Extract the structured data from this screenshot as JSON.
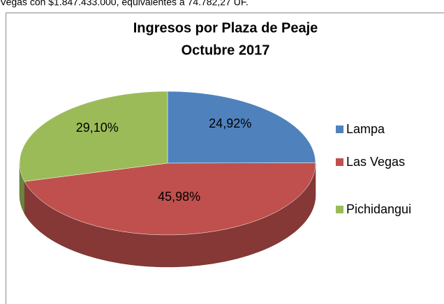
{
  "header_text": "Vegas con $1.847.433.000, equivalentes a 74.782,27 UF.",
  "chart_data": {
    "type": "pie3d",
    "title": [
      "Ingresos por Plaza de Peaje",
      "Octubre 2017"
    ],
    "series": [
      {
        "name": "Lampa",
        "color": "#4f81bd"
      },
      {
        "name": "Las Vegas",
        "color": "#c0504d"
      },
      {
        "name": "Pichidangui",
        "color": "#9bbb59"
      }
    ],
    "values": [
      24.92,
      45.98,
      29.1
    ],
    "value_labels": [
      "24,92%",
      "45,98%",
      "29,10%"
    ],
    "legend": "right"
  }
}
